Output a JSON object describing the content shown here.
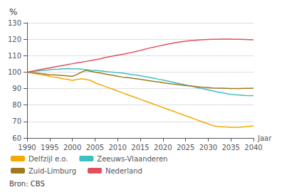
{
  "chart_data": {
    "type": "line",
    "title": "%",
    "xlabel": "Jaar",
    "source": "Bron: CBS",
    "xlim": [
      1990,
      2040
    ],
    "ylim": [
      60,
      130
    ],
    "xticks": [
      1990,
      1995,
      2000,
      2005,
      2010,
      2015,
      2020,
      2025,
      2030,
      2035,
      2040
    ],
    "yticks": [
      60,
      70,
      80,
      90,
      100,
      110,
      120,
      130
    ],
    "grid": true,
    "legend": "bottom",
    "series": [
      {
        "name": "Delfzijl e.o.",
        "color": "#f5a800",
        "values": [
          [
            1990,
            100.0
          ],
          [
            1991,
            99.5
          ],
          [
            1992,
            99.0
          ],
          [
            1993,
            98.4
          ],
          [
            1994,
            98.0
          ],
          [
            1995,
            97.5
          ],
          [
            1996,
            97.0
          ],
          [
            1997,
            96.5
          ],
          [
            1998,
            96.0
          ],
          [
            1999,
            95.5
          ],
          [
            2000,
            95.0
          ],
          [
            2001,
            95.5
          ],
          [
            2002,
            96.0
          ],
          [
            2003,
            95.5
          ],
          [
            2004,
            95.0
          ],
          [
            2005,
            93.5
          ],
          [
            2006,
            92.5
          ],
          [
            2007,
            91.5
          ],
          [
            2008,
            90.5
          ],
          [
            2009,
            89.5
          ],
          [
            2010,
            88.5
          ],
          [
            2011,
            87.5
          ],
          [
            2012,
            86.5
          ],
          [
            2013,
            85.5
          ],
          [
            2014,
            84.5
          ],
          [
            2015,
            83.5
          ],
          [
            2016,
            82.5
          ],
          [
            2017,
            81.5
          ],
          [
            2018,
            80.5
          ],
          [
            2019,
            79.5
          ],
          [
            2020,
            78.5
          ],
          [
            2021,
            77.5
          ],
          [
            2022,
            76.5
          ],
          [
            2023,
            75.5
          ],
          [
            2024,
            74.5
          ],
          [
            2025,
            73.5
          ],
          [
            2026,
            72.5
          ],
          [
            2027,
            71.5
          ],
          [
            2028,
            70.5
          ],
          [
            2029,
            69.5
          ],
          [
            2030,
            68.5
          ],
          [
            2031,
            67.5
          ],
          [
            2032,
            67.0
          ],
          [
            2033,
            66.8
          ],
          [
            2034,
            66.7
          ],
          [
            2035,
            66.5
          ],
          [
            2036,
            66.5
          ],
          [
            2037,
            66.5
          ],
          [
            2038,
            66.8
          ],
          [
            2039,
            67.0
          ],
          [
            2040,
            67.3
          ]
        ]
      },
      {
        "name": "Zeeuws-Vlaanderen",
        "color": "#40bfbf",
        "values": [
          [
            1990,
            100.0
          ],
          [
            1991,
            100.3
          ],
          [
            1992,
            100.6
          ],
          [
            1993,
            100.9
          ],
          [
            1994,
            101.2
          ],
          [
            1995,
            101.5
          ],
          [
            1996,
            101.7
          ],
          [
            1997,
            101.8
          ],
          [
            1998,
            102.0
          ],
          [
            1999,
            102.1
          ],
          [
            2000,
            102.0
          ],
          [
            2001,
            102.0
          ],
          [
            2002,
            101.8
          ],
          [
            2003,
            101.5
          ],
          [
            2004,
            101.2
          ],
          [
            2005,
            101.0
          ],
          [
            2006,
            100.8
          ],
          [
            2007,
            100.5
          ],
          [
            2008,
            100.2
          ],
          [
            2009,
            100.0
          ],
          [
            2010,
            99.7
          ],
          [
            2011,
            99.4
          ],
          [
            2012,
            99.0
          ],
          [
            2013,
            98.6
          ],
          [
            2014,
            98.2
          ],
          [
            2015,
            97.8
          ],
          [
            2016,
            97.3
          ],
          [
            2017,
            96.8
          ],
          [
            2018,
            96.3
          ],
          [
            2019,
            95.7
          ],
          [
            2020,
            95.2
          ],
          [
            2021,
            94.6
          ],
          [
            2022,
            94.0
          ],
          [
            2023,
            93.4
          ],
          [
            2024,
            92.8
          ],
          [
            2025,
            92.2
          ],
          [
            2026,
            91.6
          ],
          [
            2027,
            91.0
          ],
          [
            2028,
            90.4
          ],
          [
            2029,
            89.8
          ],
          [
            2030,
            89.2
          ],
          [
            2031,
            88.6
          ],
          [
            2032,
            88.0
          ],
          [
            2033,
            87.5
          ],
          [
            2034,
            87.0
          ],
          [
            2035,
            86.5
          ],
          [
            2036,
            86.2
          ],
          [
            2037,
            86.0
          ],
          [
            2038,
            85.8
          ],
          [
            2039,
            85.7
          ],
          [
            2040,
            85.7
          ]
        ]
      },
      {
        "name": "Zuid-Limburg",
        "color": "#a07820",
        "values": [
          [
            1990,
            100.0
          ],
          [
            1991,
            99.7
          ],
          [
            1992,
            99.4
          ],
          [
            1993,
            99.1
          ],
          [
            1994,
            98.8
          ],
          [
            1995,
            98.5
          ],
          [
            1996,
            98.3
          ],
          [
            1997,
            98.1
          ],
          [
            1998,
            97.9
          ],
          [
            1999,
            97.7
          ],
          [
            2000,
            97.5
          ],
          [
            2001,
            98.5
          ],
          [
            2002,
            100.0
          ],
          [
            2003,
            101.0
          ],
          [
            2004,
            100.5
          ],
          [
            2005,
            100.0
          ],
          [
            2006,
            99.5
          ],
          [
            2007,
            99.0
          ],
          [
            2008,
            98.5
          ],
          [
            2009,
            98.0
          ],
          [
            2010,
            97.5
          ],
          [
            2011,
            97.0
          ],
          [
            2012,
            96.7
          ],
          [
            2013,
            96.4
          ],
          [
            2014,
            96.0
          ],
          [
            2015,
            95.6
          ],
          [
            2016,
            95.2
          ],
          [
            2017,
            94.8
          ],
          [
            2018,
            94.4
          ],
          [
            2019,
            94.0
          ],
          [
            2020,
            93.6
          ],
          [
            2021,
            93.2
          ],
          [
            2022,
            92.8
          ],
          [
            2023,
            92.5
          ],
          [
            2024,
            92.2
          ],
          [
            2025,
            91.9
          ],
          [
            2026,
            91.6
          ],
          [
            2027,
            91.3
          ],
          [
            2028,
            91.0
          ],
          [
            2029,
            90.8
          ],
          [
            2030,
            90.6
          ],
          [
            2031,
            90.4
          ],
          [
            2032,
            90.3
          ],
          [
            2033,
            90.2
          ],
          [
            2034,
            90.1
          ],
          [
            2035,
            90.0
          ],
          [
            2036,
            90.0
          ],
          [
            2037,
            90.0
          ],
          [
            2038,
            90.1
          ],
          [
            2039,
            90.1
          ],
          [
            2040,
            90.2
          ]
        ]
      },
      {
        "name": "Nederland",
        "color": "#e05060",
        "values": [
          [
            1990,
            100.0
          ],
          [
            1991,
            100.5
          ],
          [
            1992,
            101.1
          ],
          [
            1993,
            101.6
          ],
          [
            1994,
            102.1
          ],
          [
            1995,
            102.6
          ],
          [
            1996,
            103.1
          ],
          [
            1997,
            103.6
          ],
          [
            1998,
            104.1
          ],
          [
            1999,
            104.6
          ],
          [
            2000,
            105.1
          ],
          [
            2001,
            105.6
          ],
          [
            2002,
            106.0
          ],
          [
            2003,
            106.5
          ],
          [
            2004,
            107.0
          ],
          [
            2005,
            107.5
          ],
          [
            2006,
            108.0
          ],
          [
            2007,
            108.7
          ],
          [
            2008,
            109.3
          ],
          [
            2009,
            109.8
          ],
          [
            2010,
            110.3
          ],
          [
            2011,
            110.8
          ],
          [
            2012,
            111.3
          ],
          [
            2013,
            111.9
          ],
          [
            2014,
            112.5
          ],
          [
            2015,
            113.2
          ],
          [
            2016,
            113.9
          ],
          [
            2017,
            114.6
          ],
          [
            2018,
            115.2
          ],
          [
            2019,
            115.8
          ],
          [
            2020,
            116.4
          ],
          [
            2021,
            117.0
          ],
          [
            2022,
            117.5
          ],
          [
            2023,
            118.0
          ],
          [
            2024,
            118.4
          ],
          [
            2025,
            118.8
          ],
          [
            2026,
            119.1
          ],
          [
            2027,
            119.3
          ],
          [
            2028,
            119.5
          ],
          [
            2029,
            119.7
          ],
          [
            2030,
            119.8
          ],
          [
            2031,
            119.9
          ],
          [
            2032,
            120.0
          ],
          [
            2033,
            120.1
          ],
          [
            2034,
            120.1
          ],
          [
            2035,
            120.1
          ],
          [
            2036,
            120.0
          ],
          [
            2037,
            119.9
          ],
          [
            2038,
            119.8
          ],
          [
            2039,
            119.7
          ],
          [
            2040,
            119.6
          ]
        ]
      }
    ]
  }
}
